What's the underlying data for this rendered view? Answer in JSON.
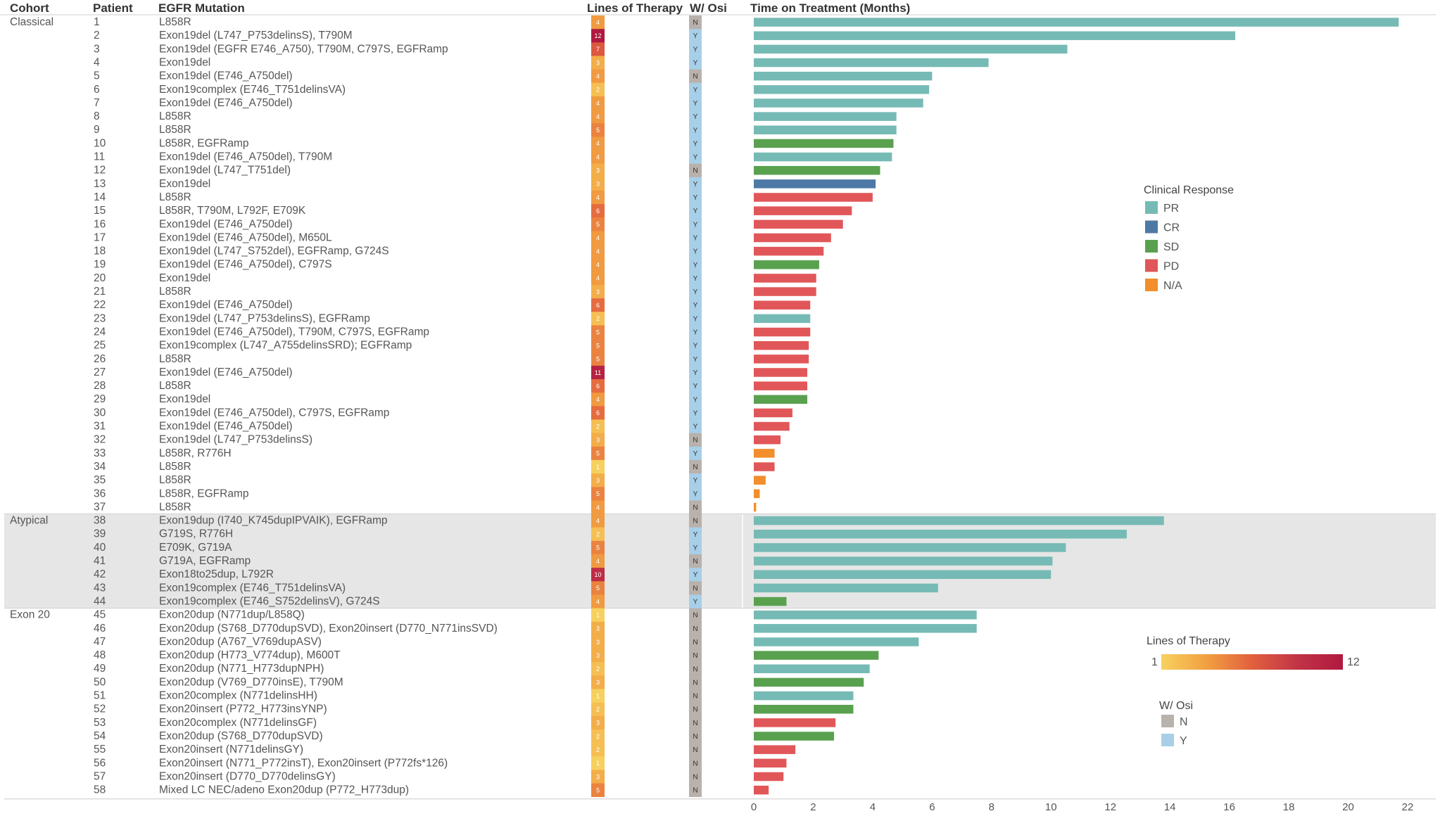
{
  "chart_data": {
    "type": "bar",
    "orientation": "horizontal",
    "headers": {
      "cohort": "Cohort",
      "patient": "Patient",
      "mutation": "EGFR Mutation",
      "lines": "Lines of Therapy",
      "osi": "W/ Osi",
      "time": "Time on Treatment (Months)"
    },
    "xlim": [
      0,
      22
    ],
    "xticks": [
      "0",
      "2",
      "4",
      "6",
      "8",
      "10",
      "12",
      "14",
      "16",
      "18",
      "20",
      "22"
    ],
    "cohorts": [
      {
        "name": "Classical",
        "first": 0,
        "last": 36,
        "shaded": false
      },
      {
        "name": "Atypical",
        "first": 37,
        "last": 43,
        "shaded": true
      },
      {
        "name": "Exon 20",
        "first": 44,
        "last": 57,
        "shaded": false
      }
    ],
    "legend": {
      "response_title": "Clinical Response",
      "responses": [
        {
          "key": "PR",
          "label": "PR",
          "color": "#76bab5"
        },
        {
          "key": "CR",
          "label": "CR",
          "color": "#4e79a7"
        },
        {
          "key": "SD",
          "label": "SD",
          "color": "#59a14f"
        },
        {
          "key": "PD",
          "label": "PD",
          "color": "#e15759"
        },
        {
          "key": "NA",
          "label": "N/A",
          "color": "#f28e2b"
        }
      ],
      "lines_title": "Lines of Therapy",
      "lines_min": "1",
      "lines_max": "12",
      "lines_colors": [
        "#f7d15f",
        "#f1a041",
        "#e2603e",
        "#c13447",
        "#b0193f"
      ],
      "osi_title": "W/ Osi",
      "osi": [
        {
          "key": "N",
          "label": "N",
          "color": "#b9b1ac"
        },
        {
          "key": "Y",
          "label": "Y",
          "color": "#a8cfe8"
        }
      ]
    },
    "rows": [
      {
        "patient": "1",
        "mutation": "L858R",
        "lines": "4",
        "osi": "N",
        "months": 21.7,
        "response": "PR"
      },
      {
        "patient": "2",
        "mutation": "Exon19del (L747_P753delinsS), T790M",
        "lines": "12",
        "osi": "Y",
        "months": 16.2,
        "response": "PR"
      },
      {
        "patient": "3",
        "mutation": "Exon19del (EGFR E746_A750), T790M, C797S, EGFRamp",
        "lines": "7",
        "osi": "Y",
        "months": 10.55,
        "response": "PR"
      },
      {
        "patient": "4",
        "mutation": "Exon19del",
        "lines": "3",
        "osi": "Y",
        "months": 7.9,
        "response": "PR"
      },
      {
        "patient": "5",
        "mutation": "Exon19del (E746_A750del)",
        "lines": "4",
        "osi": "N",
        "months": 6.0,
        "response": "PR"
      },
      {
        "patient": "6",
        "mutation": "Exon19complex (E746_T751delinsVA)",
        "lines": "2",
        "osi": "Y",
        "months": 5.9,
        "response": "PR"
      },
      {
        "patient": "7",
        "mutation": "Exon19del (E746_A750del)",
        "lines": "4",
        "osi": "Y",
        "months": 5.7,
        "response": "PR"
      },
      {
        "patient": "8",
        "mutation": "L858R",
        "lines": "4",
        "osi": "Y",
        "months": 4.8,
        "response": "PR"
      },
      {
        "patient": "9",
        "mutation": "L858R",
        "lines": "5",
        "osi": "Y",
        "months": 4.8,
        "response": "PR"
      },
      {
        "patient": "10",
        "mutation": "L858R, EGFRamp",
        "lines": "4",
        "osi": "Y",
        "months": 4.7,
        "response": "SD"
      },
      {
        "patient": "11",
        "mutation": "Exon19del (E746_A750del), T790M",
        "lines": "4",
        "osi": "Y",
        "months": 4.65,
        "response": "PR"
      },
      {
        "patient": "12",
        "mutation": "Exon19del (L747_T751del)",
        "lines": "3",
        "osi": "N",
        "months": 4.25,
        "response": "SD"
      },
      {
        "patient": "13",
        "mutation": "Exon19del",
        "lines": "3",
        "osi": "Y",
        "months": 4.1,
        "response": "CR"
      },
      {
        "patient": "14",
        "mutation": "L858R",
        "lines": "4",
        "osi": "Y",
        "months": 4.0,
        "response": "PD"
      },
      {
        "patient": "15",
        "mutation": "L858R, T790M, L792F, E709K",
        "lines": "6",
        "osi": "Y",
        "months": 3.3,
        "response": "PD"
      },
      {
        "patient": "16",
        "mutation": "Exon19del (E746_A750del)",
        "lines": "5",
        "osi": "Y",
        "months": 3.0,
        "response": "PD"
      },
      {
        "patient": "17",
        "mutation": "Exon19del (E746_A750del), M650L",
        "lines": "4",
        "osi": "Y",
        "months": 2.6,
        "response": "PD"
      },
      {
        "patient": "18",
        "mutation": "Exon19del (L747_S752del), EGFRamp, G724S",
        "lines": "4",
        "osi": "Y",
        "months": 2.35,
        "response": "PD"
      },
      {
        "patient": "19",
        "mutation": "Exon19del (E746_A750del), C797S",
        "lines": "4",
        "osi": "Y",
        "months": 2.2,
        "response": "SD"
      },
      {
        "patient": "20",
        "mutation": "Exon19del",
        "lines": "4",
        "osi": "Y",
        "months": 2.1,
        "response": "PD"
      },
      {
        "patient": "21",
        "mutation": "L858R",
        "lines": "3",
        "osi": "Y",
        "months": 2.1,
        "response": "PD"
      },
      {
        "patient": "22",
        "mutation": "Exon19del (E746_A750del)",
        "lines": "6",
        "osi": "Y",
        "months": 1.9,
        "response": "PD"
      },
      {
        "patient": "23",
        "mutation": "Exon19del (L747_P753delinsS), EGFRamp",
        "lines": "2",
        "osi": "Y",
        "months": 1.9,
        "response": "PR"
      },
      {
        "patient": "24",
        "mutation": "Exon19del (E746_A750del), T790M, C797S, EGFRamp",
        "lines": "5",
        "osi": "Y",
        "months": 1.9,
        "response": "PD"
      },
      {
        "patient": "25",
        "mutation": "Exon19complex (L747_A755delinsSRD); EGFRamp",
        "lines": "5",
        "osi": "Y",
        "months": 1.85,
        "response": "PD"
      },
      {
        "patient": "26",
        "mutation": "L858R",
        "lines": "5",
        "osi": "Y",
        "months": 1.85,
        "response": "PD"
      },
      {
        "patient": "27",
        "mutation": "Exon19del (E746_A750del)",
        "lines": "11",
        "osi": "Y",
        "months": 1.8,
        "response": "PD"
      },
      {
        "patient": "28",
        "mutation": "L858R",
        "lines": "6",
        "osi": "Y",
        "months": 1.8,
        "response": "PD"
      },
      {
        "patient": "29",
        "mutation": "Exon19del",
        "lines": "4",
        "osi": "Y",
        "months": 1.8,
        "response": "SD"
      },
      {
        "patient": "30",
        "mutation": "Exon19del (E746_A750del), C797S, EGFRamp",
        "lines": "6",
        "osi": "Y",
        "months": 1.3,
        "response": "PD"
      },
      {
        "patient": "31",
        "mutation": "Exon19del (E746_A750del)",
        "lines": "2",
        "osi": "Y",
        "months": 1.2,
        "response": "PD"
      },
      {
        "patient": "32",
        "mutation": "Exon19del (L747_P753delinsS)",
        "lines": "3",
        "osi": "N",
        "months": 0.9,
        "response": "PD"
      },
      {
        "patient": "33",
        "mutation": "L858R, R776H",
        "lines": "5",
        "osi": "Y",
        "months": 0.7,
        "response": "NA"
      },
      {
        "patient": "34",
        "mutation": "L858R",
        "lines": "1",
        "osi": "N",
        "months": 0.7,
        "response": "PD"
      },
      {
        "patient": "35",
        "mutation": "L858R",
        "lines": "3",
        "osi": "Y",
        "months": 0.4,
        "response": "NA"
      },
      {
        "patient": "36",
        "mutation": "L858R, EGFRamp",
        "lines": "5",
        "osi": "Y",
        "months": 0.2,
        "response": "NA"
      },
      {
        "patient": "37",
        "mutation": "L858R",
        "lines": "4",
        "osi": "N",
        "months": 0.08,
        "response": "NA"
      },
      {
        "patient": "38",
        "mutation": "Exon19dup (I740_K745dupIPVAIK), EGFRamp",
        "lines": "4",
        "osi": "N",
        "months": 13.8,
        "response": "PR"
      },
      {
        "patient": "39",
        "mutation": "G719S, R776H",
        "lines": "2",
        "osi": "Y",
        "months": 12.55,
        "response": "PR"
      },
      {
        "patient": "40",
        "mutation": "E709K, G719A",
        "lines": "5",
        "osi": "Y",
        "months": 10.5,
        "response": "PR"
      },
      {
        "patient": "41",
        "mutation": "G719A, EGFRamp",
        "lines": "4",
        "osi": "N",
        "months": 10.05,
        "response": "PR"
      },
      {
        "patient": "42",
        "mutation": "Exon18to25dup, L792R",
        "lines": "10",
        "osi": "Y",
        "months": 10.0,
        "response": "PR"
      },
      {
        "patient": "43",
        "mutation": "Exon19complex (E746_T751delinsVA)",
        "lines": "5",
        "osi": "N",
        "months": 6.2,
        "response": "PR"
      },
      {
        "patient": "44",
        "mutation": "Exon19complex (E746_S752delinsV), G724S",
        "lines": "4",
        "osi": "Y",
        "months": 1.1,
        "response": "SD"
      },
      {
        "patient": "45",
        "mutation": "Exon20dup (N771dup/L858Q)",
        "lines": "1",
        "osi": "N",
        "months": 7.5,
        "response": "PR"
      },
      {
        "patient": "46",
        "mutation": "Exon20dup (S768_D770dupSVD), Exon20insert (D770_N771insSVD)",
        "lines": "3",
        "osi": "N",
        "months": 7.5,
        "response": "PR"
      },
      {
        "patient": "47",
        "mutation": "Exon20dup (A767_V769dupASV)",
        "lines": "3",
        "osi": "N",
        "months": 5.55,
        "response": "PR"
      },
      {
        "patient": "48",
        "mutation": "Exon20dup (H773_V774dup), M600T",
        "lines": "3",
        "osi": "N",
        "months": 4.2,
        "response": "SD"
      },
      {
        "patient": "49",
        "mutation": "Exon20dup (N771_H773dupNPH)",
        "lines": "2",
        "osi": "N",
        "months": 3.9,
        "response": "PR"
      },
      {
        "patient": "50",
        "mutation": "Exon20dup (V769_D770insE), T790M",
        "lines": "3",
        "osi": "N",
        "months": 3.7,
        "response": "SD"
      },
      {
        "patient": "51",
        "mutation": "Exon20complex (N771delinsHH)",
        "lines": "1",
        "osi": "N",
        "months": 3.35,
        "response": "PR"
      },
      {
        "patient": "52",
        "mutation": "Exon20insert (P772_H773insYNP)",
        "lines": "2",
        "osi": "N",
        "months": 3.35,
        "response": "SD"
      },
      {
        "patient": "53",
        "mutation": "Exon20complex (N771delinsGF)",
        "lines": "3",
        "osi": "N",
        "months": 2.75,
        "response": "PD"
      },
      {
        "patient": "54",
        "mutation": "Exon20dup (S768_D770dupSVD)",
        "lines": "2",
        "osi": "N",
        "months": 2.7,
        "response": "SD"
      },
      {
        "patient": "55",
        "mutation": "Exon20insert (N771delinsGY)",
        "lines": "2",
        "osi": "N",
        "months": 1.4,
        "response": "PD"
      },
      {
        "patient": "56",
        "mutation": "Exon20insert (N771_P772insT), Exon20insert (P772fs*126)",
        "lines": "1",
        "osi": "N",
        "months": 1.1,
        "response": "PD"
      },
      {
        "patient": "57",
        "mutation": "Exon20insert (D770_D770delinsGY)",
        "lines": "3",
        "osi": "N",
        "months": 1.0,
        "response": "PD"
      },
      {
        "patient": "58",
        "mutation": "Mixed LC NEC/adeno Exon20dup (P772_H773dup)",
        "lines": "5",
        "osi": "N",
        "months": 0.5,
        "response": "PD"
      }
    ]
  }
}
